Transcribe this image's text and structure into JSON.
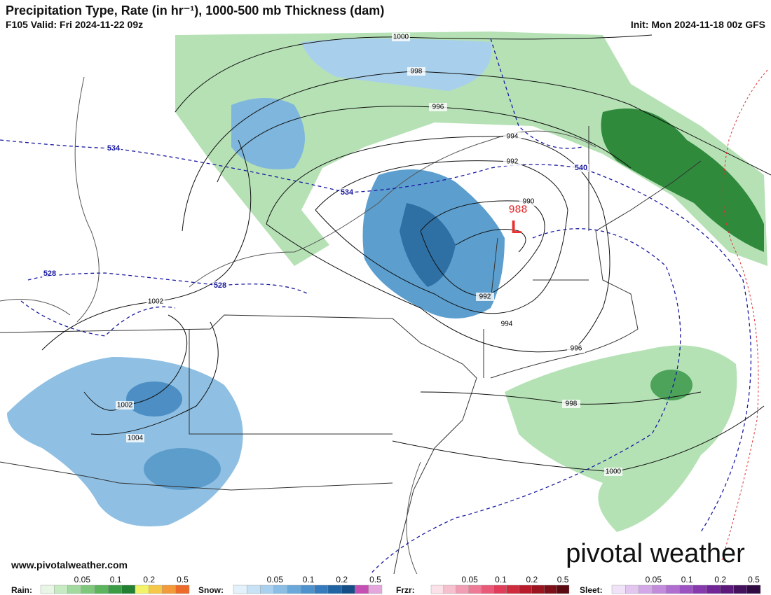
{
  "header": {
    "title": "Precipitation Type, Rate (in hr⁻¹), 1000-500 mb Thickness (dam)",
    "valid": "F105 Valid: Fri 2024-11-22 09z",
    "init": "Init: Mon 2024-11-18 00z GFS"
  },
  "map": {
    "isobar_labels": [
      "1000",
      "998",
      "996",
      "994",
      "992",
      "990",
      "992",
      "994",
      "996",
      "998",
      "1000",
      "1002",
      "1002",
      "1004"
    ],
    "thickness_labels": [
      "534",
      "534",
      "528",
      "528",
      "540"
    ],
    "low": {
      "pressure": "988",
      "symbol": "L"
    }
  },
  "footer": {
    "website": "www.pivotalweather.com",
    "brand": "pivotal weather"
  },
  "legend": [
    {
      "name": "Rain:",
      "ticks": [
        "0.05",
        "0.1",
        "0.2",
        "0.5"
      ]
    },
    {
      "name": "Snow:",
      "ticks": [
        "0.05",
        "0.1",
        "0.2",
        "0.5"
      ]
    },
    {
      "name": "Frzr:",
      "ticks": [
        "0.05",
        "0.1",
        "0.2",
        "0.5"
      ]
    },
    {
      "name": "Sleet:",
      "ticks": [
        "0.05",
        "0.1",
        "0.2",
        "0.5"
      ]
    }
  ]
}
